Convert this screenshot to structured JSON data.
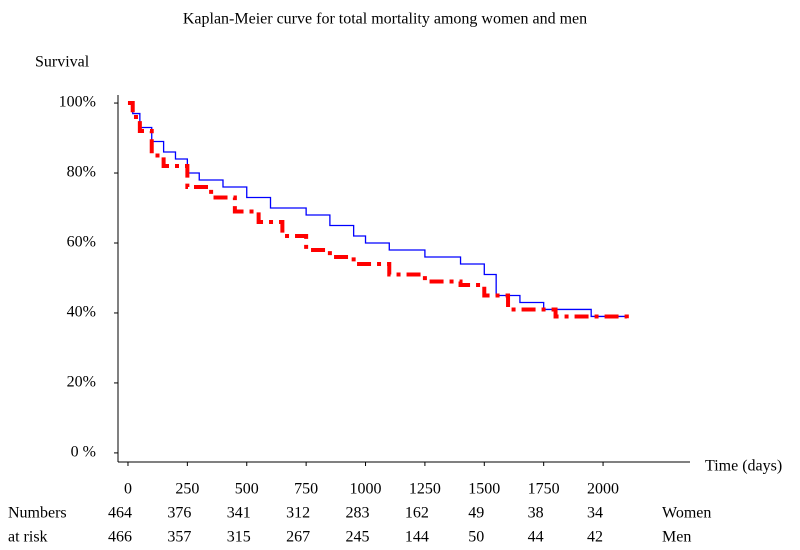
{
  "chart_data": {
    "type": "step",
    "title": "Kaplan-Meier curve for total mortality among women and men",
    "y_label": "Survival",
    "x_label": "Time (days)",
    "xlim": [
      -42,
      2366
    ],
    "xticks": [
      0,
      250,
      500,
      750,
      1000,
      1250,
      1500,
      1750,
      2000
    ],
    "ylim": [
      -2.6,
      102.3
    ],
    "yticks": [
      {
        "value": 0,
        "label": "0 %"
      },
      {
        "value": 20,
        "label": "20%"
      },
      {
        "value": 40,
        "label": "40%"
      },
      {
        "value": 60,
        "label": "60%"
      },
      {
        "value": 80,
        "label": "80%"
      },
      {
        "value": 100,
        "label": "100%"
      }
    ],
    "at_risk_label": [
      "Numbers",
      "at risk"
    ],
    "series": [
      {
        "name": "Women",
        "color": "#0000ff",
        "dash": false,
        "x": [
          0,
          20,
          50,
          100,
          150,
          200,
          250,
          300,
          400,
          500,
          600,
          750,
          850,
          950,
          1000,
          1100,
          1250,
          1400,
          1500,
          1550,
          1650,
          1750,
          1950,
          2100
        ],
        "values": [
          100,
          97,
          93,
          89,
          86,
          84,
          80,
          78,
          76,
          73,
          70,
          68,
          65,
          62,
          60,
          58,
          56,
          54,
          51,
          45,
          43,
          41,
          39,
          39
        ],
        "at_risk": [
          464,
          376,
          341,
          312,
          283,
          162,
          49,
          38,
          34
        ]
      },
      {
        "name": "Men",
        "color": "#ff0000",
        "dash": true,
        "x": [
          0,
          20,
          50,
          100,
          150,
          250,
          350,
          450,
          550,
          650,
          750,
          850,
          950,
          1100,
          1250,
          1400,
          1500,
          1600,
          1800,
          2100
        ],
        "values": [
          100,
          96,
          92,
          85,
          82,
          76,
          73,
          69,
          66,
          62,
          58,
          56,
          54,
          51,
          49,
          48,
          45,
          41,
          39,
          38
        ],
        "at_risk": [
          466,
          357,
          315,
          267,
          245,
          144,
          50,
          44,
          42
        ]
      }
    ]
  }
}
